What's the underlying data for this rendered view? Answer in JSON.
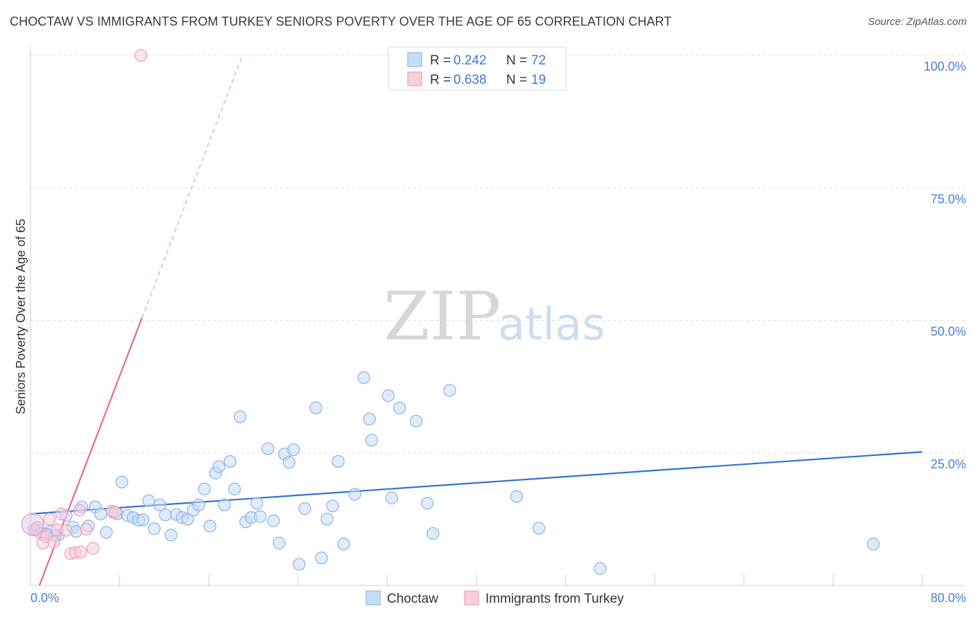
{
  "title": "CHOCTAW VS IMMIGRANTS FROM TURKEY SENIORS POVERTY OVER THE AGE OF 65 CORRELATION CHART",
  "source": "Source: ZipAtlas.com",
  "watermark": {
    "part1": "ZIP",
    "part2": "atlas"
  },
  "chart_data": {
    "type": "scatter",
    "xlabel": "",
    "ylabel": "Seniors Poverty Over the Age of 65",
    "xlim": [
      0,
      80
    ],
    "ylim": [
      0,
      100
    ],
    "x_tick_labels": [
      {
        "value": 0,
        "label": "0.0%"
      },
      {
        "value": 80,
        "label": "80.0%"
      }
    ],
    "y_tick_labels": [
      {
        "value": 100,
        "label": "100.0%"
      },
      {
        "value": 75,
        "label": "75.0%"
      },
      {
        "value": 50,
        "label": "50.0%"
      },
      {
        "value": 25,
        "label": "25.0%"
      }
    ],
    "legend": {
      "placement": "top-center",
      "entries": [
        {
          "r_label": "R =",
          "r_value": "0.242",
          "n_label": "N =",
          "n_value": "72"
        },
        {
          "r_label": "R =",
          "r_value": "0.638",
          "n_label": "N =",
          "n_value": "19"
        }
      ]
    },
    "series": [
      {
        "name": "Choctaw",
        "color": "#8fb6e8",
        "fill": "#c9dcf5",
        "trend_color": "#2f73d0",
        "trend": {
          "x0": 0,
          "y0": 13.5,
          "x1": 80,
          "y1": 25.2
        },
        "points": [
          [
            0.5,
            10.5
          ],
          [
            1.2,
            9.8
          ],
          [
            1.8,
            10.2
          ],
          [
            2.5,
            9.5
          ],
          [
            3.2,
            13.2
          ],
          [
            3.8,
            11.0
          ],
          [
            4.1,
            10.2
          ],
          [
            4.6,
            14.8
          ],
          [
            5.2,
            11.2
          ],
          [
            5.8,
            14.8
          ],
          [
            6.3,
            13.5
          ],
          [
            6.8,
            10.0
          ],
          [
            7.4,
            13.8
          ],
          [
            7.8,
            13.5
          ],
          [
            8.2,
            19.5
          ],
          [
            8.7,
            13.2
          ],
          [
            9.2,
            12.8
          ],
          [
            9.7,
            12.3
          ],
          [
            10.1,
            12.4
          ],
          [
            10.6,
            16.0
          ],
          [
            11.1,
            10.7
          ],
          [
            11.6,
            15.2
          ],
          [
            12.1,
            13.3
          ],
          [
            12.6,
            9.5
          ],
          [
            13.1,
            13.4
          ],
          [
            13.6,
            12.8
          ],
          [
            14.1,
            12.5
          ],
          [
            14.6,
            14.2
          ],
          [
            15.1,
            15.2
          ],
          [
            15.6,
            18.2
          ],
          [
            16.1,
            11.2
          ],
          [
            16.6,
            21.2
          ],
          [
            16.9,
            22.4
          ],
          [
            17.4,
            15.2
          ],
          [
            17.9,
            23.4
          ],
          [
            18.3,
            18.2
          ],
          [
            18.8,
            31.8
          ],
          [
            19.3,
            12.0
          ],
          [
            19.8,
            12.8
          ],
          [
            20.3,
            15.5
          ],
          [
            20.6,
            13.0
          ],
          [
            21.3,
            25.8
          ],
          [
            21.8,
            12.2
          ],
          [
            22.3,
            8.0
          ],
          [
            22.8,
            24.8
          ],
          [
            23.2,
            23.2
          ],
          [
            23.6,
            25.6
          ],
          [
            24.1,
            4.0
          ],
          [
            24.6,
            14.5
          ],
          [
            25.6,
            33.5
          ],
          [
            26.1,
            5.2
          ],
          [
            26.6,
            12.5
          ],
          [
            27.1,
            15.0
          ],
          [
            27.6,
            23.4
          ],
          [
            28.1,
            7.8
          ],
          [
            29.1,
            17.2
          ],
          [
            29.9,
            39.2
          ],
          [
            30.4,
            31.4
          ],
          [
            30.6,
            27.4
          ],
          [
            32.1,
            35.8
          ],
          [
            32.4,
            16.5
          ],
          [
            33.1,
            33.5
          ],
          [
            34.6,
            31.0
          ],
          [
            35.6,
            15.5
          ],
          [
            36.1,
            9.8
          ],
          [
            37.6,
            36.8
          ],
          [
            43.6,
            16.8
          ],
          [
            45.6,
            10.8
          ],
          [
            51.1,
            3.2
          ],
          [
            75.6,
            7.8
          ],
          [
            1.5,
            9.6
          ],
          [
            2.2,
            9.4
          ]
        ]
      },
      {
        "name": "Immigrants from Turkey",
        "color": "#f0a0bc",
        "fill": "#f8cfdc",
        "trend_color": "#e3679a",
        "trend": {
          "x0": 0.8,
          "y0": 0,
          "x1": 10.0,
          "y1": 50.5
        },
        "trend_dashed": {
          "x0": 10.0,
          "y0": 50.5,
          "x1": 19.0,
          "y1": 100
        },
        "points": [
          [
            0.3,
            10.5
          ],
          [
            0.6,
            11.0
          ],
          [
            0.9,
            9.8
          ],
          [
            1.1,
            8.0
          ],
          [
            1.4,
            9.2
          ],
          [
            1.7,
            12.5
          ],
          [
            2.1,
            8.2
          ],
          [
            2.4,
            10.5
          ],
          [
            2.8,
            13.5
          ],
          [
            3.2,
            10.4
          ],
          [
            3.6,
            6.0
          ],
          [
            4.0,
            6.2
          ],
          [
            4.5,
            6.3
          ],
          [
            5.0,
            10.6
          ],
          [
            5.6,
            7.0
          ],
          [
            7.3,
            14.0
          ],
          [
            7.6,
            13.8
          ],
          [
            4.4,
            14.2
          ],
          [
            9.9,
            100
          ]
        ]
      }
    ]
  },
  "bottom_legend": [
    {
      "label": "Choctaw"
    },
    {
      "label": "Immigrants from Turkey"
    }
  ]
}
